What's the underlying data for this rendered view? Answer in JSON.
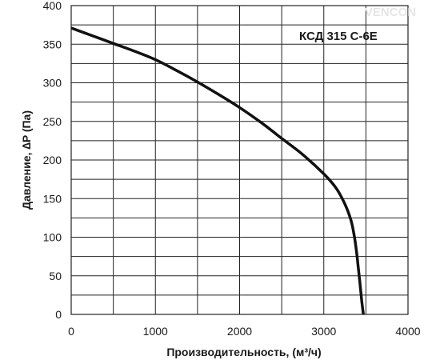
{
  "watermark": "VENCON",
  "colors": {
    "grid": "#222222",
    "curve": "#111111",
    "background": "#ffffff"
  },
  "chart_data": {
    "type": "line",
    "title": "",
    "model_label": "КСД 315 С-6Е",
    "xlabel": "Производительность, (м³/ч)",
    "ylabel": "Давление, ∆P (Па)",
    "xlim": [
      0,
      4000
    ],
    "ylim": [
      0,
      400
    ],
    "x_major_ticks": [
      0,
      1000,
      2000,
      3000,
      4000
    ],
    "x_tick_labels": [
      "0",
      "1000",
      "2000",
      "3000",
      "4000"
    ],
    "x_grid_step": 500,
    "y_major_ticks": [
      0,
      50,
      100,
      150,
      200,
      250,
      300,
      350,
      400
    ],
    "y_tick_labels": [
      "0",
      "50",
      "100",
      "150",
      "200",
      "250",
      "300",
      "350",
      "400"
    ],
    "y_grid_step": 25,
    "grid": true,
    "series": [
      {
        "x": [
          0,
          250,
          500,
          750,
          1000,
          1250,
          1500,
          1750,
          2000,
          2250,
          2500,
          2750,
          3000,
          3150,
          3250,
          3320,
          3360,
          3390,
          3410,
          3430,
          3450,
          3470
        ],
        "y": [
          371,
          361,
          351,
          341,
          330,
          316,
          301,
          285,
          268,
          249,
          228,
          207,
          182,
          163,
          143,
          123,
          103,
          80,
          60,
          40,
          18,
          0
        ]
      }
    ]
  }
}
